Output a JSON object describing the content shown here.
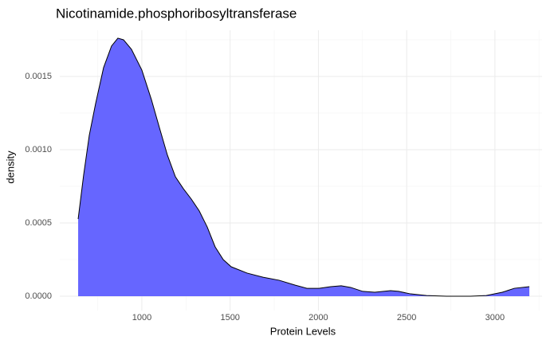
{
  "chart_data": {
    "type": "area",
    "title": "Nicotinamide.phosphoribosyltransferase",
    "x_label": "Protein Levels",
    "y_label": "density",
    "color": "#6666ff",
    "line_color": "#000000",
    "grid": true,
    "x": [
      639,
      670,
      702,
      738,
      783,
      828,
      864,
      896,
      941,
      1000,
      1054,
      1099,
      1145,
      1190,
      1235,
      1280,
      1325,
      1370,
      1415,
      1461,
      1506,
      1596,
      1686,
      1777,
      1867,
      1935,
      2003,
      2070,
      2129,
      2183,
      2251,
      2319,
      2409,
      2454,
      2522,
      2612,
      2725,
      2861,
      2951,
      3042,
      3110,
      3195
    ],
    "values": [
      0.000527,
      0.000826,
      0.001098,
      0.001315,
      0.00156,
      0.001707,
      0.001761,
      0.00175,
      0.001685,
      0.001543,
      0.001342,
      0.001152,
      0.000962,
      0.000815,
      0.000734,
      0.000663,
      0.000582,
      0.000473,
      0.000337,
      0.00025,
      0.000201,
      0.000158,
      0.00013,
      0.000109,
      7.6e-05,
      5.4e-05,
      5.4e-05,
      6.5e-05,
      7.1e-05,
      6e-05,
      3.3e-05,
      2.7e-05,
      3.8e-05,
      3.3e-05,
      1.6e-05,
      5e-06,
      0,
      0,
      5e-06,
      2.7e-05,
      5.4e-05,
      6.5e-05
    ],
    "xlim": [
      535,
      3267
    ],
    "ylim": [
      -9.78e-05,
      0.001815
    ],
    "xticks": [
      1000,
      1500,
      2000,
      2500,
      3000
    ],
    "x_minor_ticks": [
      750,
      1250,
      1750,
      2250,
      2750,
      3250
    ],
    "yticks": [
      {
        "value": 0,
        "label": "0.0000"
      },
      {
        "value": 0.0005,
        "label": "0.0005"
      },
      {
        "value": 0.001,
        "label": "0.0010"
      },
      {
        "value": 0.0015,
        "label": "0.0015"
      }
    ],
    "y_minor_ticks": [
      0.00025,
      0.00075,
      0.00125,
      0.00175
    ]
  }
}
